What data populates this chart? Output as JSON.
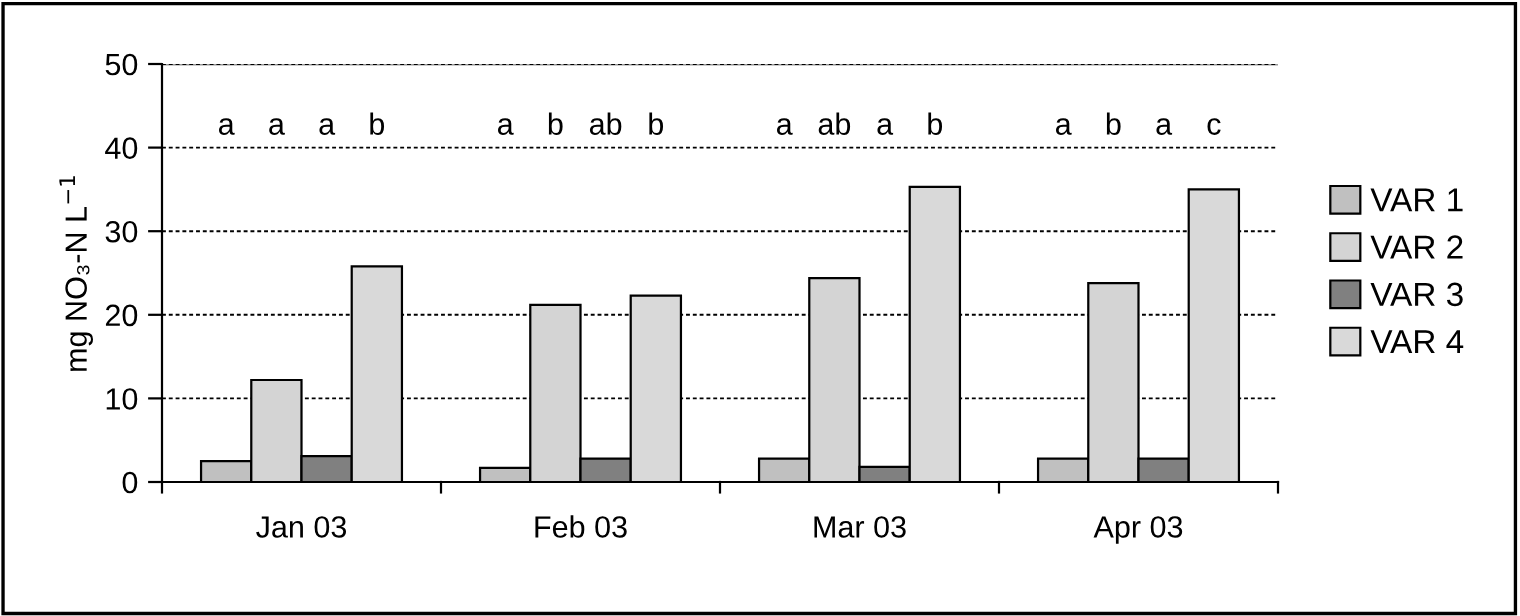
{
  "chart_data": {
    "type": "bar",
    "ylabel": "mg NO₃-N L$^{−1}$",
    "categories": [
      "Jan 03",
      "Feb 03",
      "Mar 03",
      "Apr 03"
    ],
    "series": [
      {
        "name": "VAR 1",
        "color": "#c0c0c0",
        "values": [
          2.5,
          1.7,
          2.8,
          2.8
        ]
      },
      {
        "name": "VAR 2",
        "color": "#d4d4d4",
        "values": [
          12.2,
          21.2,
          24.4,
          23.8
        ]
      },
      {
        "name": "VAR 3",
        "color": "#808080",
        "values": [
          3.1,
          2.8,
          1.8,
          2.8
        ]
      },
      {
        "name": "VAR 4",
        "color": "#d9d9d9",
        "values": [
          25.8,
          22.3,
          35.3,
          35.0
        ]
      }
    ],
    "ylim": [
      0,
      50
    ],
    "yticks": [
      0,
      10,
      20,
      30,
      40,
      50
    ],
    "grid": "y",
    "legend": "right",
    "annotations": [
      "a",
      "a",
      "a",
      "b",
      "a",
      "b",
      "ab",
      "b",
      "a",
      "ab",
      "a",
      "b",
      "a",
      "b",
      "a",
      "c"
    ]
  }
}
